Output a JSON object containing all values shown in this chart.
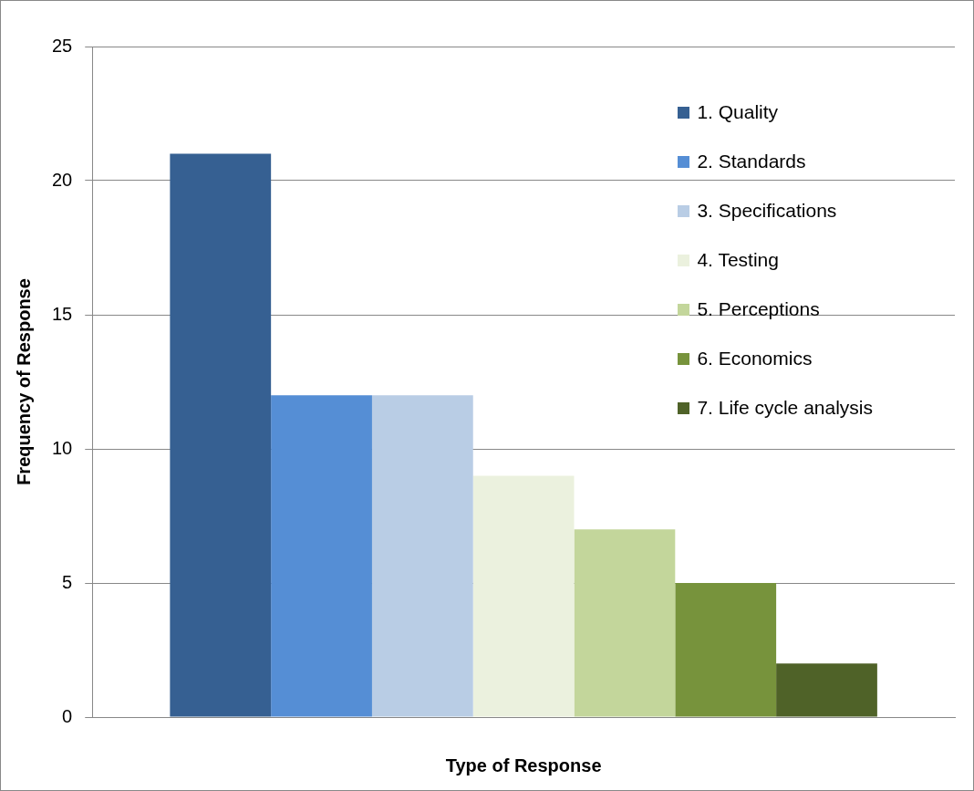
{
  "chart_data": {
    "type": "bar",
    "xlabel": "Type of Response",
    "ylabel": "Frequency of Response",
    "categories": [
      null
    ],
    "series": [
      {
        "name": "1. Quality",
        "color": "#366092",
        "values": [
          21
        ]
      },
      {
        "name": "2. Standards",
        "color": "#558ed5",
        "values": [
          12
        ]
      },
      {
        "name": "3. Specifications",
        "color": "#b9cde5",
        "values": [
          12
        ]
      },
      {
        "name": "4. Testing",
        "color": "#ebf1de",
        "values": [
          9
        ]
      },
      {
        "name": "5. Perceptions",
        "color": "#c3d69b",
        "values": [
          7
        ]
      },
      {
        "name": "6. Economics",
        "color": "#77933c",
        "values": [
          5
        ]
      },
      {
        "name": "7. Life cycle analysis",
        "color": "#4f6228",
        "values": [
          2
        ]
      }
    ],
    "ylim": [
      0,
      25
    ],
    "yticks": [
      0,
      5,
      10,
      15,
      20,
      25
    ],
    "grid": "y",
    "legend": "top right"
  }
}
